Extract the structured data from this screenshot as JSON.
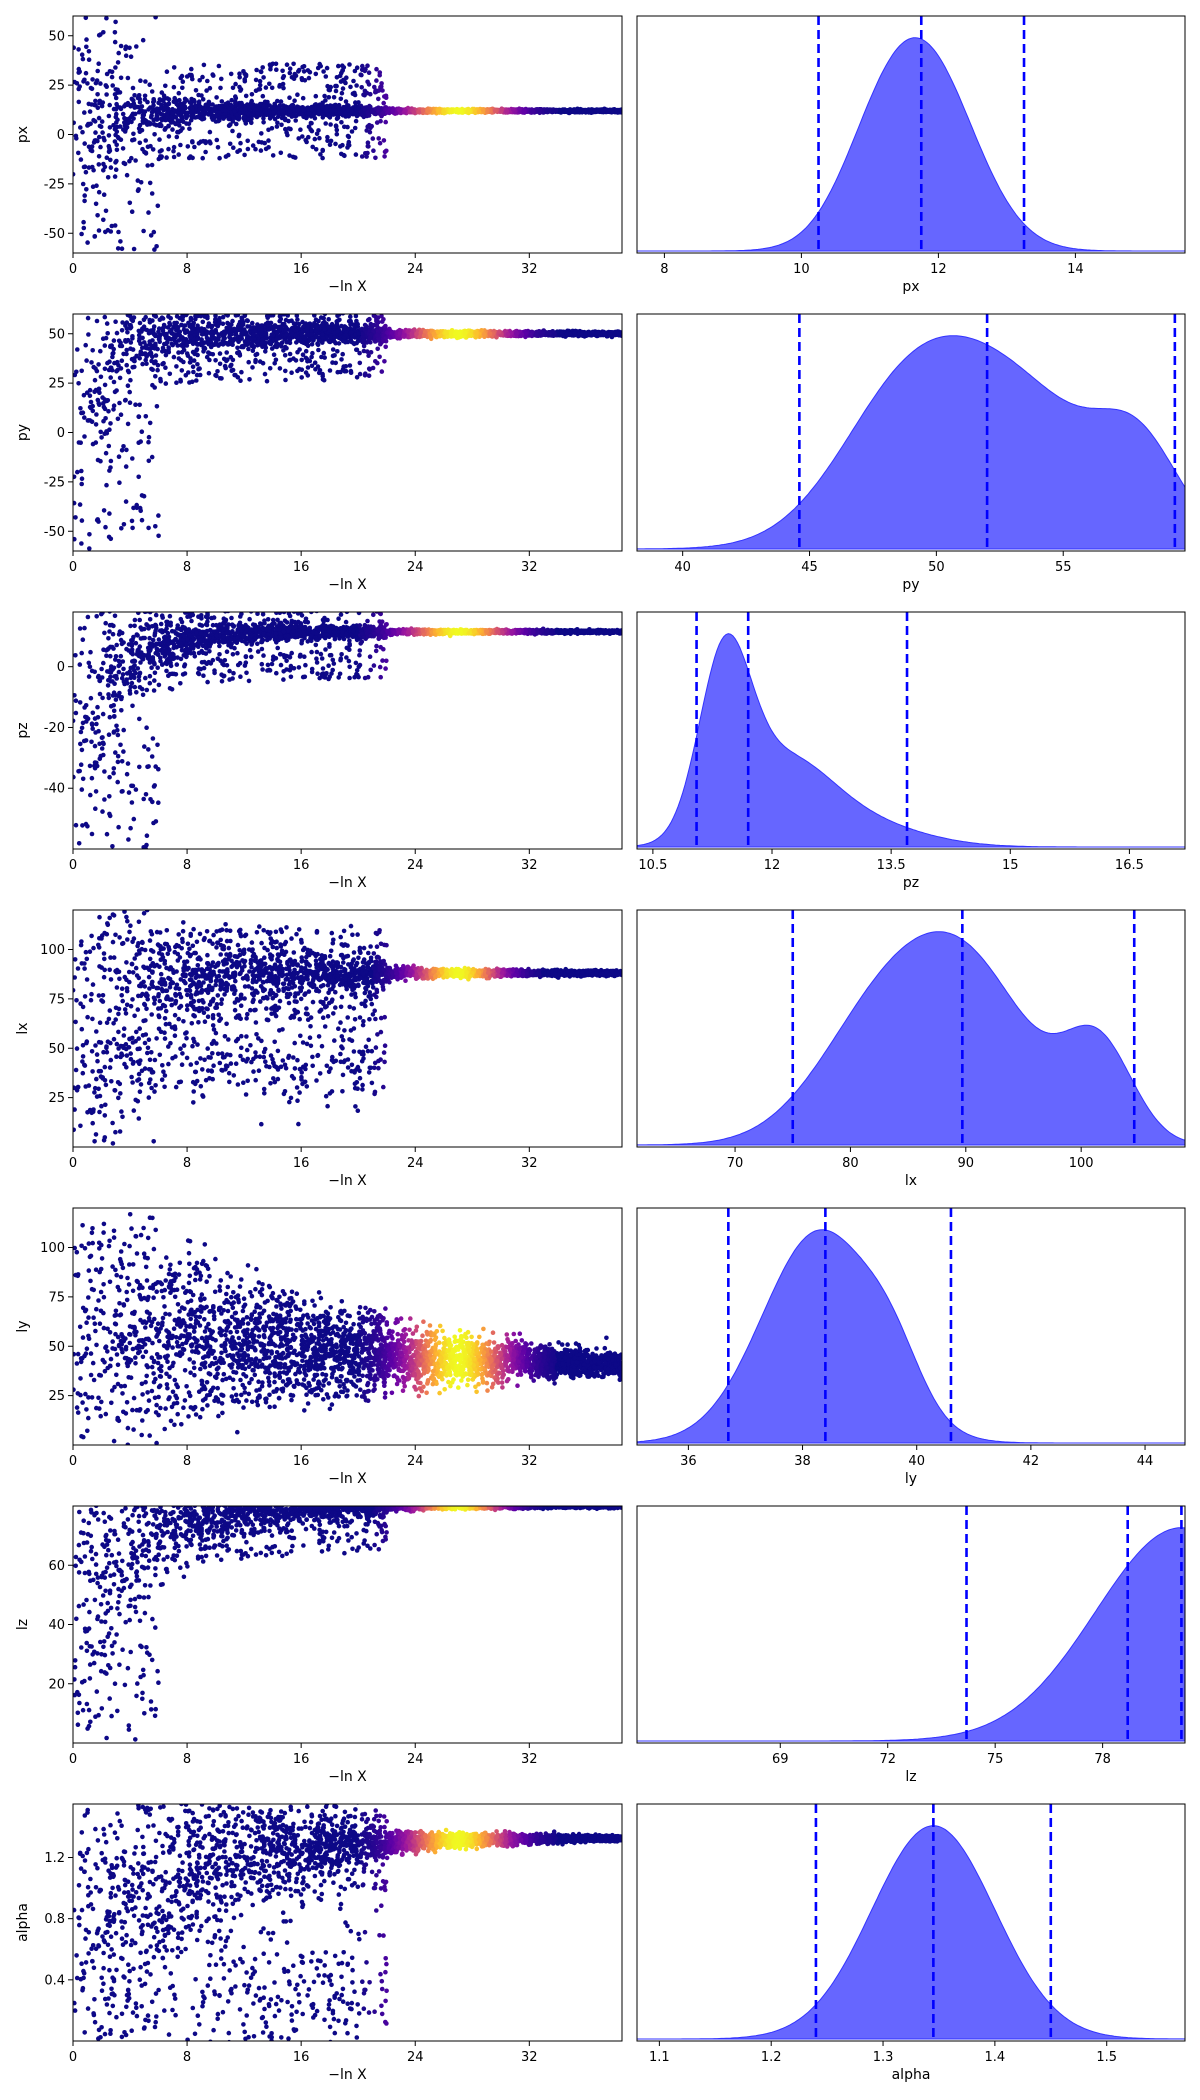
{
  "colors": {
    "scatter_base": "#0d0887",
    "posterior_fill": "#3333ff",
    "posterior_line": "#3333ff",
    "quantile_line": "#0000ff",
    "colormap": [
      "#0d0887",
      "#5c01a6",
      "#9c179e",
      "#cc4778",
      "#ed7953",
      "#fdb42f",
      "#f0f921"
    ]
  },
  "chart_data": [
    {
      "type": "scatter",
      "name": "px-trace",
      "xlabel": "−ln X",
      "ylabel": "px",
      "xlim": [
        0,
        38.5
      ],
      "ylim": [
        -60,
        60
      ],
      "xticks": [
        0,
        8,
        16,
        24,
        32
      ],
      "yticks": [
        -50,
        -25,
        0,
        25,
        50
      ],
      "trace": {
        "center_final": 12,
        "center_start": 0,
        "spread_start": 60,
        "x_end": 38.5,
        "band_shrink": 7,
        "converge_min": 2.5,
        "peak_x": 27,
        "peak_width": 3.5,
        "cloud_x_end": 22,
        "cloud_lobe": null
      }
    },
    {
      "type": "area",
      "name": "px-posterior",
      "xlabel": "px",
      "xlim": [
        7.6,
        15.6
      ],
      "xticks": [
        8,
        10,
        12,
        14
      ],
      "density": {
        "components": [
          [
            1,
            11.75,
            0.75
          ],
          [
            0.15,
            11.0,
            0.55
          ]
        ]
      },
      "quantiles": [
        10.25,
        11.75,
        13.25
      ]
    },
    {
      "type": "scatter",
      "name": "py-trace",
      "xlabel": "−ln X",
      "ylabel": "py",
      "xlim": [
        0,
        38.5
      ],
      "ylim": [
        -60,
        60
      ],
      "xticks": [
        0,
        8,
        16,
        24,
        32
      ],
      "yticks": [
        -50,
        -25,
        0,
        25,
        50
      ],
      "trace": {
        "center_final": 50,
        "center_start": 0,
        "spread_start": 60,
        "x_end": 38.5,
        "band_shrink": 18,
        "converge_min": 2,
        "peak_x": 27,
        "peak_width": 3.5,
        "cloud_x_end": 22,
        "cloud_lobe": null
      }
    },
    {
      "type": "area",
      "name": "py-posterior",
      "xlabel": "py",
      "xlim": [
        38.2,
        59.8
      ],
      "xticks": [
        40,
        45,
        50,
        55
      ],
      "density": {
        "components": [
          [
            0.55,
            48.5,
            2.6
          ],
          [
            1,
            52.5,
            3.6
          ],
          [
            0.45,
            58.0,
            1.6
          ]
        ]
      },
      "quantiles": [
        44.6,
        52.0,
        59.4
      ]
    },
    {
      "type": "scatter",
      "name": "pz-trace",
      "xlabel": "−ln X",
      "ylabel": "pz",
      "xlim": [
        0,
        38.5
      ],
      "ylim": [
        -60,
        18
      ],
      "xticks": [
        0,
        8,
        16,
        24,
        32
      ],
      "yticks": [
        -40,
        -20,
        0
      ],
      "trace": {
        "center_final": 11.5,
        "center_start": -25,
        "spread_start": 40,
        "x_end": 38.5,
        "band_shrink": 6,
        "converge_min": 3,
        "peak_x": 27,
        "peak_width": 3.5,
        "cloud_x_end": 22,
        "cloud_lobe": null
      }
    },
    {
      "type": "area",
      "name": "pz-posterior",
      "xlabel": "pz",
      "xlim": [
        10.3,
        17.2
      ],
      "xticks": [
        10.5,
        12.0,
        13.5,
        15.0,
        16.5
      ],
      "density": {
        "components": [
          [
            1,
            11.4,
            0.32
          ],
          [
            0.45,
            12.1,
            0.6
          ],
          [
            0.15,
            13.0,
            0.8
          ]
        ]
      },
      "quantiles": [
        11.05,
        11.7,
        13.7
      ]
    },
    {
      "type": "scatter",
      "name": "lx-trace",
      "xlabel": "−ln X",
      "ylabel": "lx",
      "xlim": [
        0,
        38.5
      ],
      "ylim": [
        0,
        120
      ],
      "xticks": [
        0,
        8,
        16,
        24,
        32
      ],
      "yticks": [
        25,
        50,
        75,
        100
      ],
      "trace": {
        "center_final": 88,
        "center_start": 60,
        "spread_start": 60,
        "x_end": 38.5,
        "band_shrink": 30,
        "converge_min": 3,
        "peak_x": 27,
        "peak_width": 3.0,
        "cloud_x_end": 22,
        "cloud_lobe": {
          "y": 43,
          "spread": 10,
          "x_end": 22
        }
      }
    },
    {
      "type": "area",
      "name": "lx-posterior",
      "xlabel": "lx",
      "xlim": [
        61.5,
        109.0
      ],
      "xticks": [
        70,
        80,
        90,
        100
      ],
      "density": {
        "components": [
          [
            0.75,
            82.5,
            5.5
          ],
          [
            1,
            90.5,
            5.5
          ],
          [
            0.6,
            101.5,
            3.0
          ]
        ]
      },
      "quantiles": [
        75.0,
        89.7,
        104.6
      ]
    },
    {
      "type": "scatter",
      "name": "ly-trace",
      "xlabel": "−ln X",
      "ylabel": "ly",
      "xlim": [
        0,
        38.5
      ],
      "ylim": [
        0,
        120
      ],
      "xticks": [
        0,
        8,
        16,
        24,
        32
      ],
      "yticks": [
        25,
        50,
        75,
        100
      ],
      "trace": {
        "center_final": 38.5,
        "center_start": 65,
        "spread_start": 60,
        "x_end": 38.5,
        "band_shrink": 6,
        "converge_min": 16,
        "peak_x": 27,
        "peak_width": 3.5,
        "cloud_x_end": 22,
        "cloud_lobe": null
      }
    },
    {
      "type": "area",
      "name": "ly-posterior",
      "xlabel": "ly",
      "xlim": [
        35.1,
        44.7
      ],
      "xticks": [
        36,
        38,
        40,
        42,
        44
      ],
      "density": {
        "components": [
          [
            1,
            38.3,
            1.0
          ],
          [
            0.2,
            39.6,
            0.5
          ]
        ]
      },
      "quantiles": [
        36.7,
        38.4,
        40.6
      ]
    },
    {
      "type": "scatter",
      "name": "lz-trace",
      "xlabel": "−ln X",
      "ylabel": "lz",
      "xlim": [
        0,
        38.5
      ],
      "ylim": [
        0,
        80
      ],
      "xticks": [
        0,
        8,
        16,
        24,
        32
      ],
      "yticks": [
        20,
        40,
        60
      ],
      "trace": {
        "center_final": 80,
        "center_start": 45,
        "spread_start": 45,
        "x_end": 38.5,
        "band_shrink": 12,
        "converge_min": 4,
        "peak_x": 27,
        "peak_width": 3.0,
        "cloud_x_end": 22,
        "cloud_lobe": null
      }
    },
    {
      "type": "area",
      "name": "lz-posterior",
      "xlabel": "lz",
      "xlim": [
        65.0,
        80.3
      ],
      "xticks": [
        69,
        72,
        75,
        78
      ],
      "density": {
        "components": [
          [
            1,
            80.2,
            2.4
          ]
        ]
      },
      "quantiles": [
        74.2,
        78.7,
        80.2
      ]
    },
    {
      "type": "scatter",
      "name": "alpha-trace",
      "xlabel": "−ln X",
      "ylabel": "alpha",
      "xlim": [
        0,
        38.5
      ],
      "ylim": [
        0,
        1.55
      ],
      "xticks": [
        0,
        8,
        16,
        24,
        32
      ],
      "yticks": [
        0.4,
        0.8,
        1.2
      ],
      "trace": {
        "center_final": 1.33,
        "center_start": 0.8,
        "spread_start": 0.8,
        "x_end": 38.5,
        "band_shrink": 0.25,
        "converge_min": 8,
        "peak_x": 27,
        "peak_width": 3.5,
        "cloud_x_end": 22,
        "cloud_lobe": {
          "y": 0.35,
          "spread": 0.3,
          "x_end": 22
        }
      }
    },
    {
      "type": "area",
      "name": "alpha-posterior",
      "xlabel": "alpha",
      "xlim": [
        1.08,
        1.57
      ],
      "xticks": [
        1.1,
        1.2,
        1.3,
        1.4,
        1.5
      ],
      "density": {
        "components": [
          [
            1,
            1.345,
            0.055
          ]
        ]
      },
      "quantiles": [
        1.24,
        1.345,
        1.45
      ]
    }
  ]
}
